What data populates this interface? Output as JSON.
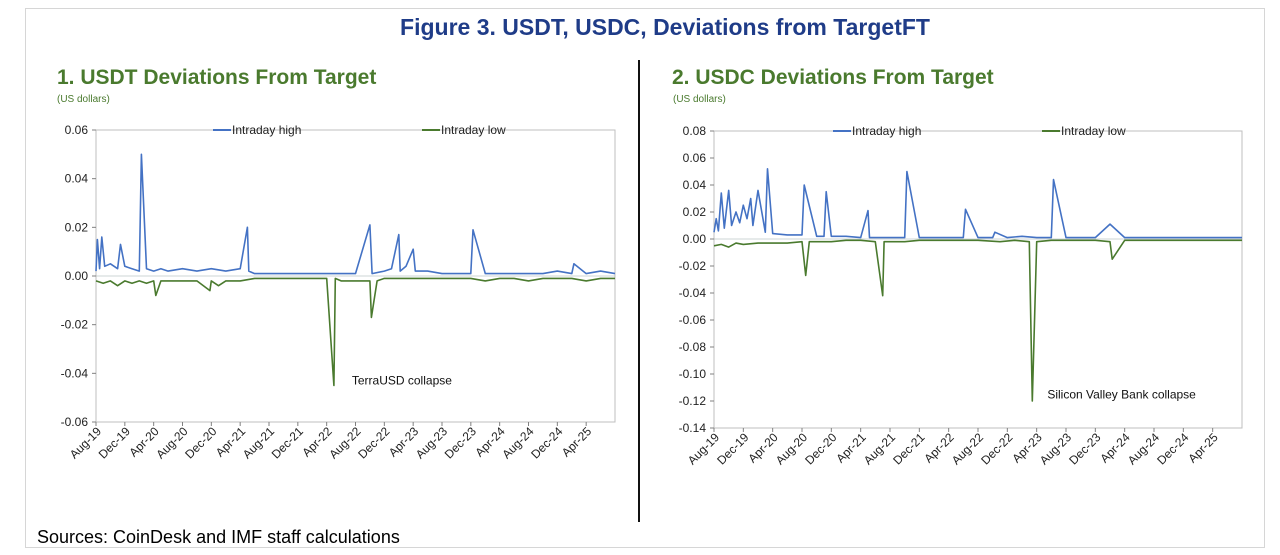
{
  "figure_title": "Figure 3. USDT, USDC, Deviations from TargetFT",
  "sources": "Sources: CoinDesk and IMF staff calculations",
  "colors": {
    "high": "#4472c4",
    "low": "#4a7a2e",
    "title_blue": "#1f3c88",
    "panel_green": "#4a7a2e"
  },
  "chart_data": [
    {
      "type": "line",
      "title": "1. USDT Deviations From Target",
      "ylabel": "(US dollars)",
      "ylim": [
        -0.06,
        0.06
      ],
      "yticks": [
        "0.06",
        "0.04",
        "0.02",
        "0.00",
        "-0.02",
        "-0.04",
        "-0.06"
      ],
      "yticks_values": [
        0.06,
        0.04,
        0.02,
        0,
        -0.02,
        -0.04,
        -0.06
      ],
      "xticks": [
        "Aug-19",
        "Dec-19",
        "Apr-20",
        "Aug-20",
        "Dec-20",
        "Apr-21",
        "Aug-21",
        "Dec-21",
        "Apr-22",
        "Aug-22",
        "Dec-22",
        "Apr-23",
        "Aug-23",
        "Dec-23",
        "Apr-24",
        "Aug-24",
        "Dec-24",
        "Apr-25"
      ],
      "x_range_months": [
        0,
        72
      ],
      "grid": false,
      "legend": "top",
      "annotations": [
        {
          "text": "TerraUSD collapse",
          "x_month": 33,
          "y": -0.043
        }
      ],
      "series": [
        {
          "name": "Intraday high",
          "x": [
            0,
            0.2,
            0.5,
            0.8,
            1.2,
            2,
            3,
            3.4,
            4,
            5,
            6,
            6.3,
            7,
            8,
            9,
            10,
            12,
            14,
            16,
            18,
            20,
            21,
            21.2,
            22,
            24,
            26,
            28,
            30,
            32,
            34,
            36,
            38,
            38.3,
            40,
            41,
            42,
            42.2,
            43,
            44,
            44.3,
            46,
            48,
            50,
            52,
            52.3,
            54,
            56,
            58,
            60,
            62,
            64,
            66,
            66.3,
            68,
            70,
            72
          ],
          "values": [
            0.002,
            0.015,
            0.003,
            0.016,
            0.004,
            0.005,
            0.003,
            0.013,
            0.004,
            0.003,
            0.002,
            0.05,
            0.003,
            0.002,
            0.003,
            0.002,
            0.003,
            0.002,
            0.003,
            0.002,
            0.003,
            0.02,
            0.002,
            0.001,
            0.001,
            0.001,
            0.001,
            0.001,
            0.001,
            0.001,
            0.001,
            0.021,
            0.001,
            0.002,
            0.003,
            0.017,
            0.002,
            0.004,
            0.011,
            0.002,
            0.002,
            0.001,
            0.001,
            0.001,
            0.019,
            0.001,
            0.001,
            0.001,
            0.001,
            0.001,
            0.002,
            0.001,
            0.005,
            0.001,
            0.002,
            0.001
          ]
        },
        {
          "name": "Intraday low",
          "x": [
            0,
            1,
            2,
            3,
            4,
            5,
            6,
            7,
            8,
            8.3,
            9,
            10,
            12,
            14,
            15.8,
            16,
            17,
            18,
            20,
            22,
            24,
            26,
            28,
            30,
            32,
            33,
            33.2,
            34,
            36,
            38,
            38.2,
            39,
            40,
            42,
            44,
            46,
            48,
            50,
            52,
            54,
            56,
            58,
            60,
            62,
            64,
            66,
            68,
            70,
            72
          ],
          "values": [
            -0.002,
            -0.003,
            -0.002,
            -0.004,
            -0.002,
            -0.003,
            -0.002,
            -0.003,
            -0.002,
            -0.008,
            -0.002,
            -0.002,
            -0.002,
            -0.002,
            -0.006,
            -0.002,
            -0.004,
            -0.002,
            -0.002,
            -0.001,
            -0.001,
            -0.001,
            -0.001,
            -0.001,
            -0.001,
            -0.045,
            -0.001,
            -0.002,
            -0.002,
            -0.002,
            -0.017,
            -0.002,
            -0.001,
            -0.001,
            -0.001,
            -0.001,
            -0.001,
            -0.001,
            -0.001,
            -0.002,
            -0.001,
            -0.001,
            -0.002,
            -0.001,
            -0.001,
            -0.001,
            -0.002,
            -0.001,
            -0.001
          ]
        }
      ]
    },
    {
      "type": "line",
      "title": "2. USDC Deviations From Target",
      "ylabel": "(US dollars)",
      "ylim": [
        -0.14,
        0.08
      ],
      "yticks": [
        "0.08",
        "0.06",
        "0.04",
        "0.02",
        "0.00",
        "-0.02",
        "-0.04",
        "-0.06",
        "-0.08",
        "-0.10",
        "-0.12",
        "-0.14"
      ],
      "yticks_values": [
        0.08,
        0.06,
        0.04,
        0.02,
        0,
        -0.02,
        -0.04,
        -0.06,
        -0.08,
        -0.1,
        -0.12,
        -0.14
      ],
      "xticks": [
        "Aug-19",
        "Dec-19",
        "Apr-20",
        "Aug-20",
        "Dec-20",
        "Apr-21",
        "Aug-21",
        "Dec-21",
        "Apr-22",
        "Aug-22",
        "Dec-22",
        "Apr-23",
        "Aug-23",
        "Dec-23",
        "Apr-24",
        "Aug-24",
        "Dec-24",
        "Apr-25"
      ],
      "x_range_months": [
        0,
        72
      ],
      "grid": false,
      "legend": "top",
      "annotations": [
        {
          "text": "Silicon Valley Bank collapse",
          "x_month": 43,
          "y": -0.115
        }
      ],
      "series": [
        {
          "name": "Intraday high",
          "x": [
            0,
            0.3,
            0.6,
            1,
            1.4,
            2,
            2.4,
            3,
            3.5,
            4,
            4.5,
            5,
            5.3,
            6,
            7,
            7.3,
            8,
            10,
            12,
            12.3,
            14,
            15,
            15.3,
            16,
            18,
            20,
            21,
            21.2,
            22,
            24,
            26,
            26.3,
            28,
            30,
            32,
            34,
            34.3,
            36,
            38,
            38.3,
            40,
            42,
            44,
            46,
            46.3,
            48,
            50,
            52,
            54,
            56,
            58,
            60,
            62,
            64,
            66,
            68,
            70,
            72
          ],
          "values": [
            0.005,
            0.015,
            0.006,
            0.034,
            0.008,
            0.036,
            0.01,
            0.02,
            0.012,
            0.025,
            0.015,
            0.03,
            0.01,
            0.036,
            0.005,
            0.052,
            0.004,
            0.003,
            0.003,
            0.04,
            0.002,
            0.002,
            0.035,
            0.002,
            0.002,
            0.001,
            0.021,
            0.001,
            0.001,
            0.001,
            0.001,
            0.05,
            0.001,
            0.001,
            0.001,
            0.001,
            0.022,
            0.001,
            0.001,
            0.005,
            0.001,
            0.002,
            0.001,
            0.001,
            0.044,
            0.001,
            0.001,
            0.001,
            0.011,
            0.001,
            0.001,
            0.001,
            0.001,
            0.001,
            0.001,
            0.001,
            0.001,
            0.001
          ]
        },
        {
          "name": "Intraday low",
          "x": [
            0,
            1,
            2,
            3,
            4,
            6,
            8,
            10,
            12,
            12.5,
            13,
            14,
            16,
            18,
            20,
            22,
            23,
            23.2,
            24,
            26,
            28,
            30,
            32,
            34,
            36,
            39,
            41,
            43,
            43.4,
            44,
            46,
            48,
            50,
            52,
            54,
            54.3,
            56,
            58,
            60,
            62,
            64,
            66,
            68,
            70,
            72
          ],
          "values": [
            -0.005,
            -0.004,
            -0.006,
            -0.003,
            -0.004,
            -0.003,
            -0.003,
            -0.003,
            -0.002,
            -0.027,
            -0.002,
            -0.002,
            -0.002,
            -0.001,
            -0.001,
            -0.002,
            -0.042,
            -0.002,
            -0.002,
            -0.002,
            -0.001,
            -0.001,
            -0.001,
            -0.001,
            -0.001,
            -0.002,
            -0.001,
            -0.002,
            -0.12,
            -0.002,
            -0.001,
            -0.001,
            -0.001,
            -0.001,
            -0.002,
            -0.015,
            -0.001,
            -0.001,
            -0.001,
            -0.001,
            -0.001,
            -0.001,
            -0.001,
            -0.001,
            -0.001
          ]
        }
      ]
    }
  ]
}
